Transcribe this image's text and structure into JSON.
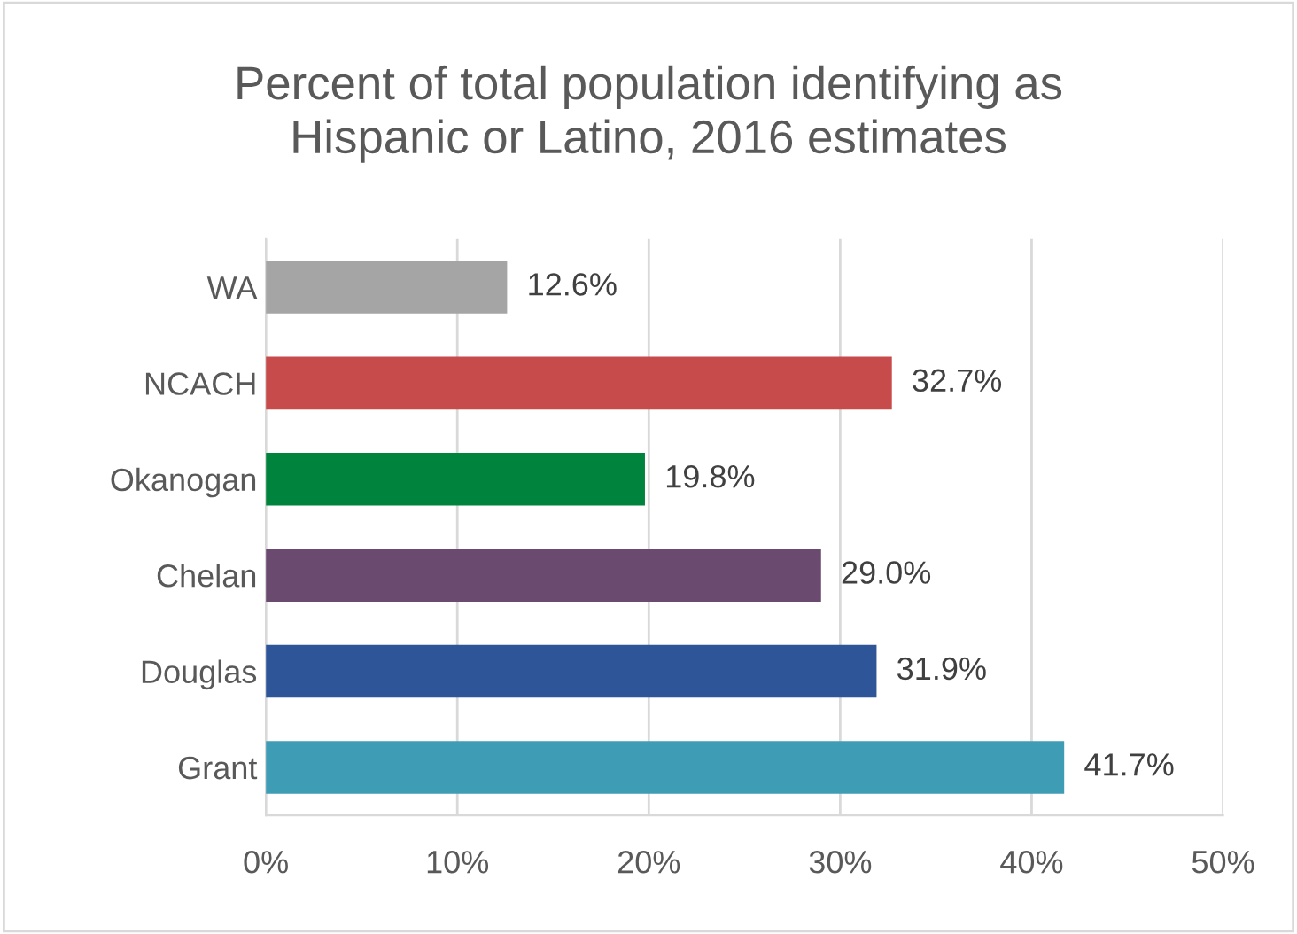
{
  "chart_data": {
    "type": "bar",
    "orientation": "horizontal",
    "title": "Percent of total population identifying as\nHispanic or Latino, 2016 estimates",
    "categories": [
      "WA",
      "NCACH",
      "Okanogan",
      "Chelan",
      "Douglas",
      "Grant"
    ],
    "values": [
      12.6,
      32.7,
      19.8,
      29.0,
      31.9,
      41.7
    ],
    "colors": [
      "#a5a5a5",
      "#c84b4b",
      "#00843d",
      "#6a4a6e",
      "#2e5597",
      "#3e9db4"
    ],
    "value_labels": [
      "12.6%",
      "32.7%",
      "19.8%",
      "29.0%",
      "31.9%",
      "41.7%"
    ],
    "xlim": [
      0,
      50
    ],
    "xticks": [
      {
        "value": 0,
        "label": "0%"
      },
      {
        "value": 10,
        "label": "10%"
      },
      {
        "value": 20,
        "label": "20%"
      },
      {
        "value": 30,
        "label": "30%"
      },
      {
        "value": 40,
        "label": "40%"
      },
      {
        "value": 50,
        "label": "50%"
      }
    ],
    "grid": "x",
    "legend": false
  }
}
